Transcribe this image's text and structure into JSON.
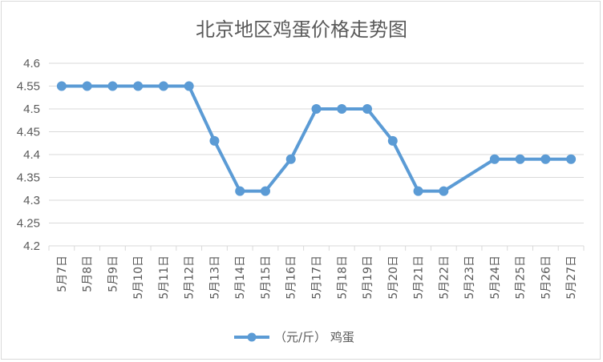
{
  "chart_data": {
    "type": "line",
    "title": "北京地区鸡蛋价格走势图",
    "xlabel": "",
    "ylabel": "",
    "categories": [
      "5月7日",
      "5月8日",
      "5月9日",
      "5月10日",
      "5月11日",
      "5月12日",
      "5月13日",
      "5月14日",
      "5月15日",
      "5月16日",
      "5月17日",
      "5月18日",
      "5月19日",
      "5月20日",
      "5月21日",
      "5月22日",
      "5月23日",
      "5月24日",
      "5月25日",
      "5月26日",
      "5月27日"
    ],
    "series": [
      {
        "name": "（元/斤） 鸡蛋",
        "values": [
          4.55,
          4.55,
          4.55,
          4.55,
          4.55,
          4.55,
          4.43,
          4.32,
          4.32,
          4.39,
          4.5,
          4.5,
          4.5,
          4.43,
          4.32,
          4.32,
          null,
          4.39,
          4.39,
          4.39,
          4.39
        ],
        "color": "#5B9BD5"
      }
    ],
    "ylim": [
      4.2,
      4.6
    ],
    "yticks": [
      "4.2",
      "4.25",
      "4.3",
      "4.35",
      "4.4",
      "4.45",
      "4.5",
      "4.55",
      "4.6"
    ],
    "grid": true,
    "legend": "bottom"
  }
}
